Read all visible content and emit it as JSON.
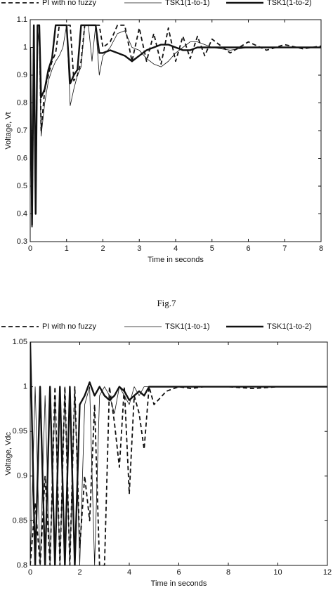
{
  "caption": "Fig.7",
  "chart_data": [
    {
      "type": "line",
      "xlabel": "Time in seconds",
      "ylabel": "Voltage, Vt",
      "xlim": [
        0,
        8
      ],
      "xticks": [
        0,
        1,
        2,
        3,
        4,
        5,
        6,
        7,
        8
      ],
      "ylim": [
        0.3,
        1.1
      ],
      "yticks": [
        0.3,
        0.4,
        0.5,
        0.6,
        0.7,
        0.8,
        0.9,
        1,
        1.1
      ],
      "legend": "top",
      "grid": false,
      "x": [
        0,
        0.05,
        0.1,
        0.15,
        0.2,
        0.25,
        0.3,
        0.4,
        0.5,
        0.6,
        0.7,
        0.8,
        0.9,
        1.0,
        1.1,
        1.2,
        1.3,
        1.4,
        1.5,
        1.6,
        1.7,
        1.8,
        1.9,
        2.0,
        2.2,
        2.4,
        2.6,
        2.8,
        3.0,
        3.2,
        3.4,
        3.6,
        3.8,
        4.0,
        4.2,
        4.4,
        4.6,
        4.8,
        5.0,
        5.5,
        6.0,
        6.5,
        7.0,
        7.5,
        8.0
      ],
      "series": [
        {
          "name": "PI with no fuzzy",
          "color": "#111111",
          "style": "dashed",
          "values": [
            1.0,
            0.35,
            1.08,
            0.4,
            1.08,
            1.08,
            0.7,
            0.85,
            0.9,
            0.95,
            0.98,
            1.08,
            1.08,
            1.08,
            1.08,
            0.88,
            0.9,
            0.95,
            1.08,
            1.08,
            1.08,
            1.08,
            1.08,
            1.0,
            1.02,
            1.08,
            1.08,
            0.95,
            1.07,
            0.95,
            1.05,
            0.94,
            1.07,
            0.95,
            1.04,
            0.96,
            1.04,
            0.97,
            1.03,
            0.98,
            1.02,
            0.99,
            1.01,
            0.995,
            1.005
          ]
        },
        {
          "name": "TSK1(1-to-1)",
          "color": "#111111",
          "style": "thin",
          "values": [
            1.0,
            0.4,
            0.9,
            0.4,
            1.08,
            1.0,
            0.68,
            0.8,
            0.88,
            0.92,
            0.95,
            0.97,
            1.0,
            1.08,
            0.79,
            0.85,
            0.9,
            0.93,
            1.08,
            1.08,
            0.95,
            1.08,
            0.9,
            0.97,
            1.0,
            1.05,
            1.06,
            1.0,
            0.99,
            0.96,
            0.94,
            0.93,
            0.95,
            0.98,
            1.0,
            1.02,
            1.02,
            1.01,
            1.0,
            0.99,
            1.0,
            1.0,
            1.0,
            1.0,
            1.0
          ]
        },
        {
          "name": "TSK1(1-to-2)",
          "color": "#111111",
          "style": "thick",
          "values": [
            1.0,
            0.36,
            1.08,
            0.4,
            1.08,
            1.08,
            0.82,
            0.85,
            0.92,
            0.96,
            1.08,
            1.08,
            1.08,
            1.08,
            0.87,
            0.9,
            0.92,
            1.08,
            1.08,
            1.08,
            1.08,
            1.08,
            0.98,
            0.98,
            0.99,
            0.98,
            0.97,
            0.95,
            0.97,
            0.99,
            1.0,
            1.01,
            1.01,
            1.0,
            0.99,
            0.99,
            1.0,
            1.0,
            1.0,
            1.0,
            1.0,
            1.0,
            1.0,
            1.0,
            1.0
          ]
        }
      ]
    },
    {
      "type": "line",
      "xlabel": "Time in seconds",
      "ylabel": "Voltage, Vdc",
      "xlim": [
        0,
        12
      ],
      "xticks": [
        0,
        2,
        4,
        6,
        8,
        10,
        12
      ],
      "ylim": [
        0.8,
        1.05
      ],
      "yticks": [
        0.8,
        0.85,
        0.9,
        0.95,
        1,
        1.05
      ],
      "legend": "top",
      "grid": false,
      "x": [
        0,
        0.2,
        0.4,
        0.6,
        0.8,
        1.0,
        1.2,
        1.4,
        1.6,
        1.8,
        2.0,
        2.2,
        2.4,
        2.6,
        2.8,
        3.0,
        3.2,
        3.4,
        3.6,
        3.8,
        4.0,
        4.2,
        4.4,
        4.6,
        4.8,
        5.0,
        5.5,
        6.0,
        6.5,
        7.0,
        8.0,
        9.0,
        10.0,
        11.0,
        12.0
      ],
      "series": [
        {
          "name": "PI with no fuzzy",
          "color": "#111111",
          "style": "dashed",
          "values": [
            0.8,
            0.87,
            0.8,
            0.9,
            0.8,
            1.0,
            0.8,
            1.0,
            0.8,
            1.0,
            0.82,
            0.9,
            0.85,
            0.98,
            0.8,
            0.8,
            1.0,
            0.96,
            0.91,
            1.0,
            0.88,
            0.99,
            0.97,
            0.93,
            1.0,
            0.98,
            0.995,
            1.0,
            0.998,
            1.0,
            1.0,
            0.998,
            1.0,
            1.0,
            1.0
          ]
        },
        {
          "name": "TSK1(1-to-1)",
          "color": "#111111",
          "style": "thin",
          "values": [
            0.8,
            1.0,
            0.8,
            0.99,
            0.8,
            0.99,
            0.8,
            1.0,
            0.8,
            1.0,
            0.8,
            0.98,
            1.0,
            0.8,
            0.99,
            1.0,
            0.99,
            0.97,
            1.0,
            0.99,
            0.98,
            1.0,
            0.99,
            1.0,
            1.0,
            1.0,
            1.0,
            1.0,
            1.0,
            1.0,
            1.0,
            1.0,
            1.0,
            1.0,
            1.0
          ]
        },
        {
          "name": "TSK1(1-to-2)",
          "color": "#111111",
          "style": "thick",
          "values": [
            1.05,
            0.8,
            1.0,
            0.8,
            1.0,
            0.8,
            1.0,
            0.8,
            1.0,
            0.8,
            0.98,
            0.99,
            1.005,
            0.99,
            1.0,
            0.99,
            0.985,
            0.99,
            1.0,
            0.995,
            0.985,
            0.99,
            0.995,
            0.99,
            1.0,
            1.0,
            1.0,
            1.0,
            1.0,
            1.0,
            1.0,
            1.0,
            1.0,
            1.0,
            1.0
          ]
        }
      ]
    }
  ]
}
